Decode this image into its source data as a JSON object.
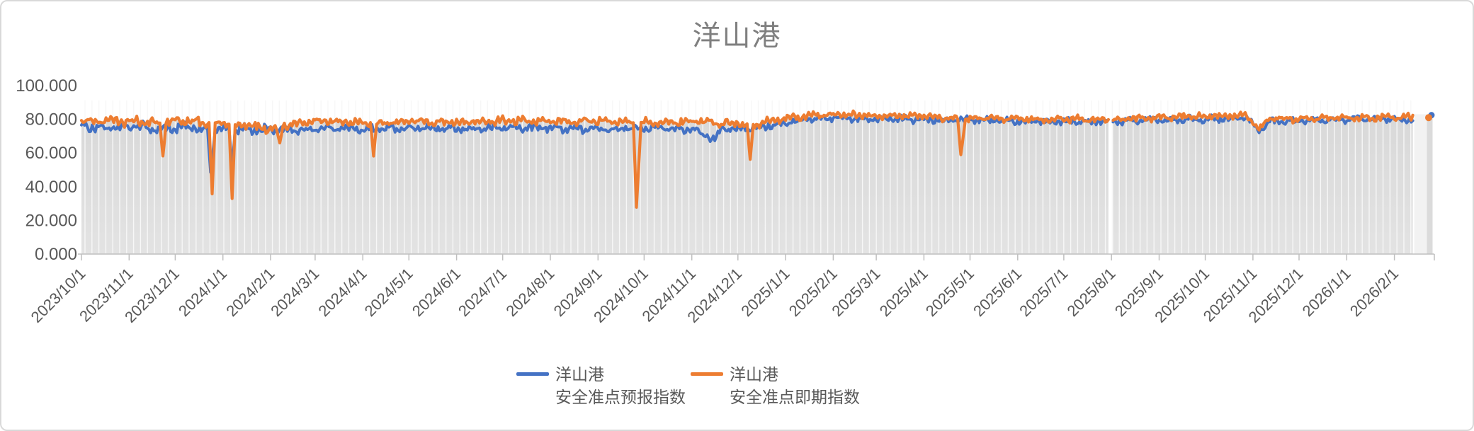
{
  "chart_title": "洋山港",
  "colors": {
    "forecast_line": "#4472C4",
    "spot_line": "#ED7D31",
    "plot_fill": "#DBDBDB",
    "plot_fill_light": "#F2F2F2",
    "stripe": "#F7F7F7",
    "axis_line": "#BFBFBF",
    "axis_text": "#595959",
    "title_text": "#7F7F7F",
    "frame_border": "#D9D9D9"
  },
  "legend": [
    {
      "line1": "洋山港",
      "line2": "安全准点预报指数",
      "color": "#4472C4"
    },
    {
      "line1": "洋山港",
      "line2": "安全准点即期指数",
      "color": "#ED7D31"
    }
  ],
  "chart_data": {
    "type": "line",
    "title": "洋山港",
    "xlabel": "",
    "ylabel": "",
    "ylim": [
      0,
      100
    ],
    "grid": false,
    "legend_position": "bottom",
    "y_tick_values": [
      0,
      20,
      40,
      60,
      80,
      100
    ],
    "y_tick_labels": [
      "0.000",
      "20.000",
      "40.000",
      "60.000",
      "80.000",
      "100.000"
    ],
    "x_tick_labels": [
      "2023/10/1",
      "2023/11/1",
      "2023/12/1",
      "2024/1/1",
      "2024/2/1",
      "2024/3/1",
      "2024/4/1",
      "2024/5/1",
      "2024/6/1",
      "2024/7/1",
      "2024/8/1",
      "2024/9/1",
      "2024/10/1",
      "2024/11/1",
      "2024/12/1",
      "2025/1/1",
      "2025/2/1",
      "2025/3/1",
      "2025/4/1",
      "2025/5/1",
      "2025/6/1",
      "2025/7/1",
      "2025/8/1",
      "2025/9/1",
      "2025/10/1",
      "2025/11/1",
      "2025/12/1",
      "2026/1/1",
      "2026/2/1"
    ],
    "x_start": "2023/10/1",
    "x_end": "2026/2/27",
    "main_data_end": "2026/2/13",
    "data_gap_dates": [
      "2025/7/31",
      "2025/8/1"
    ],
    "isolated_final_point": {
      "date": "2026/2/24",
      "forecast": 82.5,
      "spot": 81
    },
    "sampling": "daily",
    "series": [
      {
        "name": "洋山港 安全准点预报指数",
        "color": "#4472C4",
        "keypoints": [
          [
            "2023/10/1",
            76
          ],
          [
            "2023/10/20",
            74.5
          ],
          [
            "2023/11/5",
            76
          ],
          [
            "2023/11/20",
            74
          ],
          [
            "2023/12/5",
            75
          ],
          [
            "2023/12/22",
            74
          ],
          [
            "2023/12/24",
            48
          ],
          [
            "2023/12/27",
            74
          ],
          [
            "2024/1/5",
            74
          ],
          [
            "2024/1/7",
            52
          ],
          [
            "2024/1/9",
            74
          ],
          [
            "2024/2/1",
            74
          ],
          [
            "2024/2/20",
            73.5
          ],
          [
            "2024/3/10",
            75
          ],
          [
            "2024/4/1",
            74
          ],
          [
            "2024/5/1",
            75
          ],
          [
            "2024/6/1",
            74
          ],
          [
            "2024/7/1",
            75
          ],
          [
            "2024/8/1",
            75
          ],
          [
            "2024/9/1",
            74
          ],
          [
            "2024/10/1",
            75
          ],
          [
            "2024/11/1",
            74
          ],
          [
            "2024/11/16",
            68
          ],
          [
            "2024/11/20",
            74
          ],
          [
            "2024/12/10",
            74.5
          ],
          [
            "2024/12/25",
            77
          ],
          [
            "2025/1/15",
            80
          ],
          [
            "2025/2/1",
            81
          ],
          [
            "2025/3/1",
            80
          ],
          [
            "2025/4/1",
            80
          ],
          [
            "2025/5/1",
            80
          ],
          [
            "2025/6/1",
            79
          ],
          [
            "2025/7/1",
            79
          ],
          [
            "2025/8/1",
            78.5
          ],
          [
            "2025/9/1",
            80
          ],
          [
            "2025/10/1",
            80
          ],
          [
            "2025/10/28",
            81
          ],
          [
            "2025/11/5",
            73
          ],
          [
            "2025/11/12",
            79
          ],
          [
            "2025/12/1",
            79
          ],
          [
            "2026/1/1",
            80
          ],
          [
            "2026/2/13",
            80
          ]
        ]
      },
      {
        "name": "洋山港 安全准点即期指数",
        "color": "#ED7D31",
        "keypoints": [
          [
            "2023/10/1",
            79
          ],
          [
            "2023/11/1",
            79
          ],
          [
            "2023/11/21",
            78
          ],
          [
            "2023/11/23",
            57
          ],
          [
            "2023/11/25",
            78
          ],
          [
            "2023/12/5",
            79
          ],
          [
            "2023/12/23",
            78
          ],
          [
            "2023/12/25",
            36
          ],
          [
            "2023/12/27",
            78
          ],
          [
            "2024/1/5",
            77
          ],
          [
            "2024/1/7",
            33
          ],
          [
            "2024/1/9",
            77
          ],
          [
            "2024/2/5",
            74
          ],
          [
            "2024/2/7",
            65
          ],
          [
            "2024/2/9",
            76
          ],
          [
            "2024/3/1",
            79
          ],
          [
            "2024/4/6",
            78
          ],
          [
            "2024/4/8",
            59
          ],
          [
            "2024/4/10",
            77
          ],
          [
            "2024/5/1",
            79
          ],
          [
            "2024/6/1",
            78
          ],
          [
            "2024/7/1",
            79
          ],
          [
            "2024/8/1",
            79
          ],
          [
            "2024/9/1",
            79
          ],
          [
            "2024/9/24",
            78
          ],
          [
            "2024/9/26",
            28
          ],
          [
            "2024/9/29",
            78
          ],
          [
            "2024/10/15",
            78
          ],
          [
            "2024/11/1",
            79
          ],
          [
            "2024/12/7",
            77
          ],
          [
            "2024/12/9",
            55
          ],
          [
            "2024/12/11",
            77
          ],
          [
            "2025/1/1",
            81
          ],
          [
            "2025/2/1",
            83
          ],
          [
            "2025/3/1",
            82
          ],
          [
            "2025/4/1",
            82
          ],
          [
            "2025/4/23",
            80
          ],
          [
            "2025/4/25",
            59
          ],
          [
            "2025/4/28",
            80
          ],
          [
            "2025/5/15",
            81
          ],
          [
            "2025/6/1",
            80
          ],
          [
            "2025/7/1",
            80
          ],
          [
            "2025/8/1",
            79.5
          ],
          [
            "2025/9/1",
            81
          ],
          [
            "2025/10/1",
            82
          ],
          [
            "2025/10/28",
            82
          ],
          [
            "2025/11/5",
            74
          ],
          [
            "2025/11/12",
            81
          ],
          [
            "2025/12/1",
            80
          ],
          [
            "2026/1/1",
            81
          ],
          [
            "2026/2/13",
            81
          ]
        ]
      }
    ]
  }
}
